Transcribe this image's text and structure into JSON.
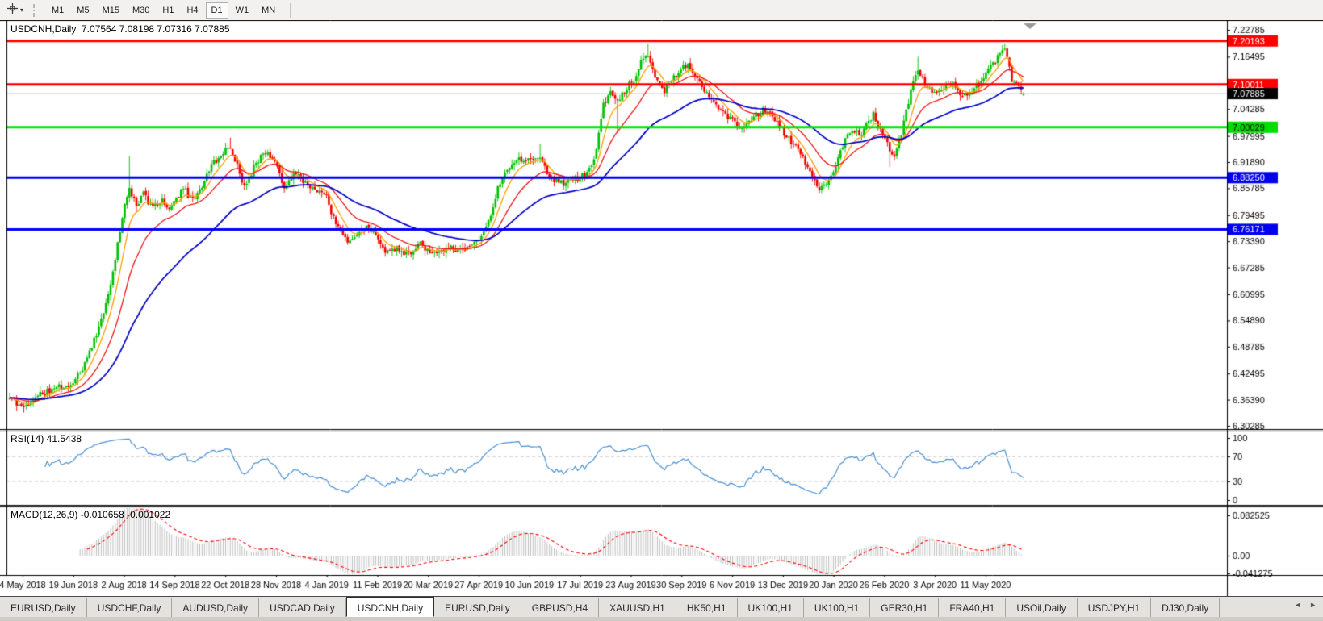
{
  "toolbar": {
    "crosshair_tool": {
      "icon": "crosshair-icon",
      "caret": "▾"
    },
    "timeframes": [
      "M1",
      "M5",
      "M15",
      "M30",
      "H1",
      "H4",
      "D1",
      "W1",
      "MN"
    ],
    "active_timeframe": "D1"
  },
  "chart": {
    "title": "USDCNH,Daily  7.07564 7.08198 7.07316 7.07885",
    "symbol": "USDCNH",
    "period": "Daily",
    "rsi_label": "RSI(14) 41.5438",
    "macd_label": "MACD(12,26,9) -0.010658 -0.001022"
  },
  "chart_data": {
    "type": "candlestick",
    "symbol": "USDCNH",
    "timeframe": "Daily",
    "last_ohlc": {
      "open": 7.07564,
      "high": 7.08198,
      "low": 7.07316,
      "close": 7.07885
    },
    "num_bars": 433,
    "up_color": "#00c000",
    "down_color": "#f40000",
    "current_price": 7.07885,
    "price_axis_ticks": [
      "7.22785",
      "7.16495",
      "7.04285",
      "6.97995",
      "6.91890",
      "6.85785",
      "6.79495",
      "6.73390",
      "6.67285",
      "6.60995",
      "6.54890",
      "6.48785",
      "6.42495",
      "6.36390",
      "6.30285"
    ],
    "ylim": [
      6.30285,
      7.22785
    ],
    "levels": [
      {
        "price": 7.20193,
        "label": "7.20193",
        "color": "#ff0000",
        "badge_bg": "#ff0000",
        "badge_fg": "#ffffff",
        "width": 3,
        "current": false
      },
      {
        "price": 7.10011,
        "label": "7.10011",
        "color": "#ff0000",
        "badge_bg": "#ff0000",
        "badge_fg": "#ffffff",
        "width": 3,
        "current": false
      },
      {
        "price": 7.07885,
        "label": "7.07885",
        "color": "#c8c8c8",
        "badge_bg": "#000000",
        "badge_fg": "#ffffff",
        "width": 1,
        "current": true
      },
      {
        "price": 7.00029,
        "label": "7.00029",
        "color": "#00e400",
        "badge_bg": "#00dd00",
        "badge_fg": "#000000",
        "width": 3,
        "current": false
      },
      {
        "price": 6.8825,
        "label": "6.88250",
        "color": "#0000ff",
        "badge_bg": "#0000ee",
        "badge_fg": "#ffffff",
        "width": 3,
        "current": false
      },
      {
        "price": 6.76171,
        "label": "6.76171",
        "color": "#0000ff",
        "badge_bg": "#0000ee",
        "badge_fg": "#ffffff",
        "width": 3,
        "current": false
      }
    ],
    "date_labels": [
      "4 May 2018",
      "19 Jun 2018",
      "2 Aug 2018",
      "14 Sep 2018",
      "22 Oct 2018",
      "28 Nov 2018",
      "4 Jan 2019",
      "11 Feb 2019",
      "20 Mar 2019",
      "27 Apr 2019",
      "10 Jun 2019",
      "17 Jul 2019",
      "23 Aug 2019",
      "30 Sep 2019",
      "6 Nov 2019",
      "13 Dec 2019",
      "20 Jan 2020",
      "26 Feb 2020",
      "3 Apr 2020",
      "11 May 2020"
    ],
    "close_anchors": [
      [
        0.0,
        6.368
      ],
      [
        0.013,
        6.345
      ],
      [
        0.03,
        6.376
      ],
      [
        0.047,
        6.392
      ],
      [
        0.061,
        6.398
      ],
      [
        0.072,
        6.438
      ],
      [
        0.082,
        6.498
      ],
      [
        0.092,
        6.558
      ],
      [
        0.1,
        6.642
      ],
      [
        0.106,
        6.722
      ],
      [
        0.112,
        6.798
      ],
      [
        0.118,
        6.858
      ],
      [
        0.125,
        6.815
      ],
      [
        0.132,
        6.845
      ],
      [
        0.14,
        6.815
      ],
      [
        0.15,
        6.828
      ],
      [
        0.157,
        6.805
      ],
      [
        0.165,
        6.842
      ],
      [
        0.172,
        6.852
      ],
      [
        0.18,
        6.835
      ],
      [
        0.19,
        6.862
      ],
      [
        0.2,
        6.918
      ],
      [
        0.211,
        6.942
      ],
      [
        0.218,
        6.955
      ],
      [
        0.225,
        6.905
      ],
      [
        0.23,
        6.858
      ],
      [
        0.238,
        6.892
      ],
      [
        0.248,
        6.935
      ],
      [
        0.262,
        6.928
      ],
      [
        0.27,
        6.858
      ],
      [
        0.28,
        6.895
      ],
      [
        0.29,
        6.872
      ],
      [
        0.302,
        6.858
      ],
      [
        0.312,
        6.838
      ],
      [
        0.322,
        6.775
      ],
      [
        0.332,
        6.732
      ],
      [
        0.342,
        6.745
      ],
      [
        0.352,
        6.775
      ],
      [
        0.36,
        6.748
      ],
      [
        0.37,
        6.712
      ],
      [
        0.382,
        6.718
      ],
      [
        0.395,
        6.705
      ],
      [
        0.405,
        6.728
      ],
      [
        0.418,
        6.708
      ],
      [
        0.432,
        6.722
      ],
      [
        0.448,
        6.712
      ],
      [
        0.462,
        6.738
      ],
      [
        0.472,
        6.775
      ],
      [
        0.48,
        6.845
      ],
      [
        0.49,
        6.908
      ],
      [
        0.5,
        6.922
      ],
      [
        0.512,
        6.928
      ],
      [
        0.522,
        6.938
      ],
      [
        0.532,
        6.882
      ],
      [
        0.545,
        6.872
      ],
      [
        0.557,
        6.878
      ],
      [
        0.568,
        6.888
      ],
      [
        0.578,
        6.932
      ],
      [
        0.585,
        7.052
      ],
      [
        0.592,
        7.082
      ],
      [
        0.6,
        7.062
      ],
      [
        0.608,
        7.092
      ],
      [
        0.615,
        7.112
      ],
      [
        0.622,
        7.148
      ],
      [
        0.63,
        7.175
      ],
      [
        0.637,
        7.115
      ],
      [
        0.645,
        7.085
      ],
      [
        0.653,
        7.112
      ],
      [
        0.663,
        7.138
      ],
      [
        0.67,
        7.148
      ],
      [
        0.678,
        7.115
      ],
      [
        0.687,
        7.082
      ],
      [
        0.695,
        7.055
      ],
      [
        0.705,
        7.032
      ],
      [
        0.713,
        7.022
      ],
      [
        0.72,
        6.992
      ],
      [
        0.728,
        7.015
      ],
      [
        0.737,
        7.032
      ],
      [
        0.747,
        7.042
      ],
      [
        0.757,
        7.012
      ],
      [
        0.765,
        6.982
      ],
      [
        0.773,
        6.958
      ],
      [
        0.782,
        6.935
      ],
      [
        0.792,
        6.882
      ],
      [
        0.8,
        6.852
      ],
      [
        0.808,
        6.872
      ],
      [
        0.815,
        6.912
      ],
      [
        0.823,
        6.968
      ],
      [
        0.83,
        6.992
      ],
      [
        0.838,
        6.985
      ],
      [
        0.845,
        7.005
      ],
      [
        0.852,
        7.028
      ],
      [
        0.86,
        6.992
      ],
      [
        0.867,
        6.948
      ],
      [
        0.873,
        6.928
      ],
      [
        0.88,
        6.992
      ],
      [
        0.888,
        7.075
      ],
      [
        0.895,
        7.138
      ],
      [
        0.902,
        7.108
      ],
      [
        0.91,
        7.082
      ],
      [
        0.92,
        7.092
      ],
      [
        0.928,
        7.108
      ],
      [
        0.937,
        7.072
      ],
      [
        0.947,
        7.082
      ],
      [
        0.957,
        7.105
      ],
      [
        0.965,
        7.135
      ],
      [
        0.974,
        7.162
      ],
      [
        0.981,
        7.186
      ],
      [
        0.988,
        7.115
      ],
      [
        1.0,
        7.079
      ]
    ],
    "wick_spikes": [
      [
        0.118,
        6.932
      ],
      [
        0.218,
        6.976
      ],
      [
        0.522,
        6.962
      ],
      [
        0.63,
        7.196
      ],
      [
        0.895,
        7.165
      ],
      [
        0.981,
        7.196
      ],
      [
        0.6,
        6.988
      ],
      [
        0.868,
        6.908
      ]
    ],
    "ma_lines": [
      {
        "period": 8,
        "color": "#ff9d00"
      },
      {
        "period": 21,
        "color": "#f01414"
      },
      {
        "period": 55,
        "color": "#0000c8"
      }
    ],
    "indicators": {
      "rsi": {
        "name": "RSI",
        "params": "14",
        "value": "41.5438",
        "overbought": 70,
        "oversold": 30,
        "axis_labels": [
          "100",
          "70",
          "30",
          "0"
        ],
        "line_color": "#4a90d2",
        "level_color": "#c0c0c0"
      },
      "macd": {
        "name": "MACD",
        "params": "12,26,9",
        "macd_value": "-0.010658",
        "signal_value": "-0.001022",
        "axis_labels": [
          "0.082525",
          "0.00",
          "-0.041275"
        ],
        "axis_values": [
          0.082525,
          0.0,
          -0.041275
        ],
        "hist_color": "#bdbdbd",
        "signal_color": "#ff0000"
      }
    },
    "shift_marker": {
      "icon": "chart-shift-triangle-icon",
      "color": "#9a9a9a"
    }
  },
  "tabs": {
    "items": [
      "EURUSD,Daily",
      "USDCHF,Daily",
      "AUDUSD,Daily",
      "USDCAD,Daily",
      "USDCNH,Daily",
      "EURUSD,Daily",
      "GBPUSD,H4",
      "XAUUSD,H1",
      "HK50,H1",
      "UK100,H1",
      "UK100,H1",
      "GER30,H1",
      "FRA40,H1",
      "USOil,Daily",
      "USDJPY,H1",
      "DJ30,Daily"
    ],
    "active_index": 4,
    "scroll_left": "◄",
    "scroll_right": "►"
  }
}
